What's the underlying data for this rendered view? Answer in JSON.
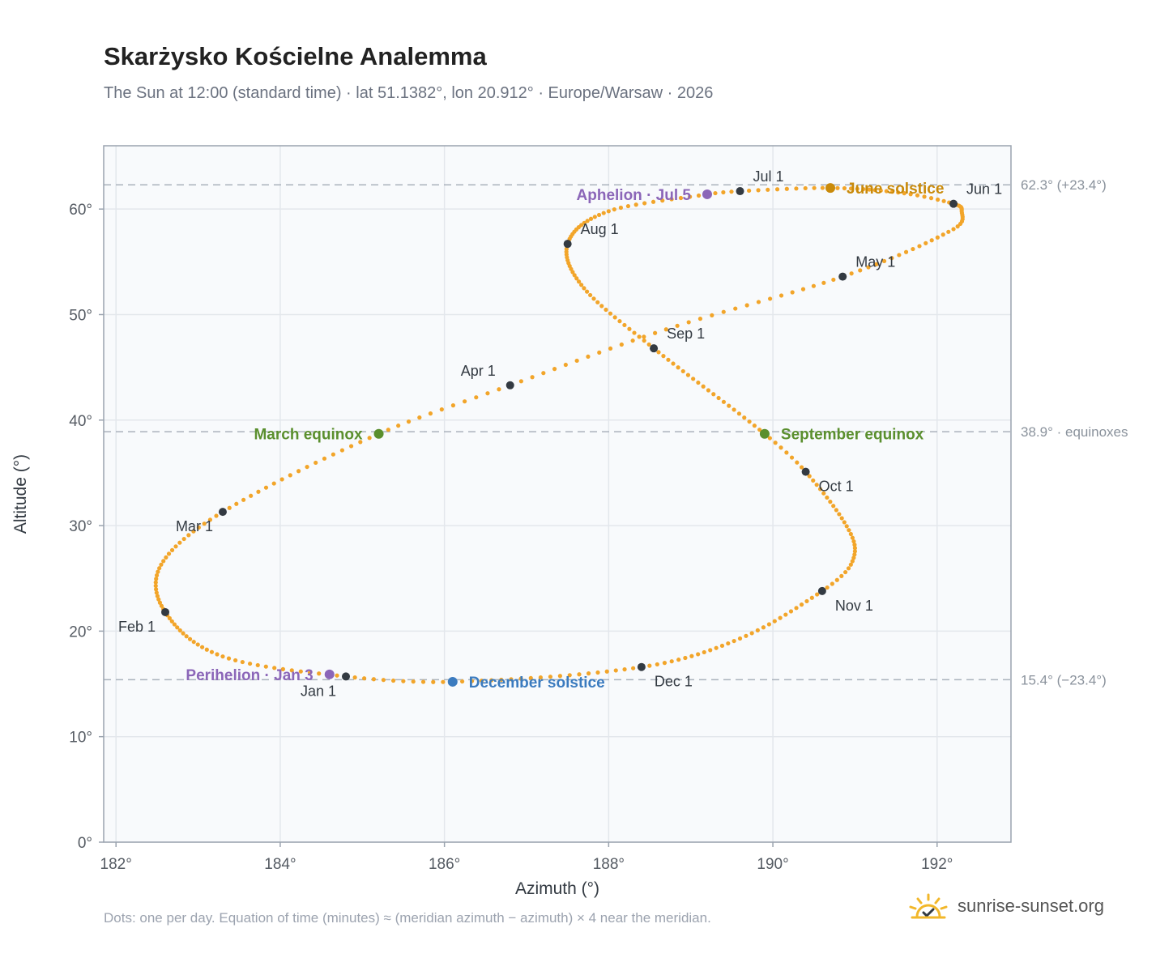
{
  "title": "Skarżysko Kościelne Analemma",
  "subtitle": "The Sun at 12:00 (standard time) · lat 51.1382°, lon 20.912° · Europe/Warsaw · 2026",
  "footnote": "Dots: one per day. Equation of time (minutes) ≈ (meridian azimuth − azimuth) × 4 near the meridian.",
  "brand": {
    "name": "sunrise-sunset.org",
    "icon": "sun-logo-icon"
  },
  "colors": {
    "curve": "#f2a52a",
    "month_marker": "#333a42",
    "solstice_june": "#c98a0a",
    "solstice_december": "#3b7bbf",
    "equinox": "#5a8f2e",
    "apsis": "#8b66b8",
    "plot_bg": "#f8fafc",
    "grid": "#e3e7ec",
    "frame": "#9aa3af",
    "ref_line": "#aab2bc"
  },
  "chart_data": {
    "type": "scatter",
    "xlabel": "Azimuth (°)",
    "ylabel": "Altitude (°)",
    "xlim": [
      181.85,
      192.9
    ],
    "ylim": [
      0,
      66
    ],
    "xticks": [
      182,
      184,
      186,
      188,
      190,
      192
    ],
    "xtick_labels": [
      "182°",
      "184°",
      "186°",
      "188°",
      "190°",
      "192°"
    ],
    "yticks": [
      0,
      10,
      20,
      30,
      40,
      50,
      60
    ],
    "ytick_labels": [
      "0°",
      "10°",
      "20°",
      "30°",
      "40°",
      "50°",
      "60°"
    ],
    "grid": true,
    "reference_lines": [
      {
        "y": 62.3,
        "label": "62.3° (+23.4°)"
      },
      {
        "y": 38.9,
        "label": "38.9° · equinoxes"
      },
      {
        "y": 15.4,
        "label": "15.4° (−23.4°)"
      }
    ],
    "daily_path": {
      "points_per_day": 1,
      "anchors": [
        {
          "day": 1,
          "az": 184.8,
          "alt": 15.7
        },
        {
          "day": 16,
          "az": 183.3,
          "alt": 17.6
        },
        {
          "day": 32,
          "az": 182.6,
          "alt": 21.8
        },
        {
          "day": 46,
          "az": 182.55,
          "alt": 26.3
        },
        {
          "day": 60,
          "az": 183.3,
          "alt": 31.3
        },
        {
          "day": 79,
          "az": 185.2,
          "alt": 38.7
        },
        {
          "day": 91,
          "az": 186.8,
          "alt": 43.3
        },
        {
          "day": 105,
          "az": 188.7,
          "alt": 48.6
        },
        {
          "day": 121,
          "az": 190.85,
          "alt": 53.6
        },
        {
          "day": 137,
          "az": 192.2,
          "alt": 58.1
        },
        {
          "day": 145,
          "az": 192.3,
          "alt": 59.8
        },
        {
          "day": 152,
          "az": 192.2,
          "alt": 60.5
        },
        {
          "day": 160,
          "az": 191.6,
          "alt": 61.5
        },
        {
          "day": 172,
          "az": 190.7,
          "alt": 62.0
        },
        {
          "day": 182,
          "az": 189.6,
          "alt": 61.7
        },
        {
          "day": 186,
          "az": 189.2,
          "alt": 61.4
        },
        {
          "day": 198,
          "az": 188.0,
          "alt": 59.8
        },
        {
          "day": 213,
          "az": 187.5,
          "alt": 56.7
        },
        {
          "day": 228,
          "az": 187.7,
          "alt": 52.5
        },
        {
          "day": 244,
          "az": 188.55,
          "alt": 46.8
        },
        {
          "day": 266,
          "az": 189.9,
          "alt": 38.7
        },
        {
          "day": 274,
          "az": 190.4,
          "alt": 35.1
        },
        {
          "day": 289,
          "az": 190.95,
          "alt": 29.2
        },
        {
          "day": 298,
          "az": 190.95,
          "alt": 26.3
        },
        {
          "day": 305,
          "az": 190.6,
          "alt": 23.8
        },
        {
          "day": 320,
          "az": 189.6,
          "alt": 19.3
        },
        {
          "day": 335,
          "az": 188.4,
          "alt": 16.6
        },
        {
          "day": 355,
          "az": 186.1,
          "alt": 15.2
        },
        {
          "day": 366,
          "az": 184.8,
          "alt": 15.7
        }
      ]
    },
    "month_markers": [
      {
        "label": "Jan 1",
        "az": 184.8,
        "alt": 15.7,
        "anchor": "below-left"
      },
      {
        "label": "Feb 1",
        "az": 182.6,
        "alt": 21.8,
        "anchor": "below-left"
      },
      {
        "label": "Mar 1",
        "az": 183.3,
        "alt": 31.3,
        "anchor": "below-left"
      },
      {
        "label": "Apr 1",
        "az": 186.8,
        "alt": 43.3,
        "anchor": "above-left"
      },
      {
        "label": "May 1",
        "az": 190.85,
        "alt": 53.6,
        "anchor": "above-right"
      },
      {
        "label": "Jun 1",
        "az": 192.2,
        "alt": 60.5,
        "anchor": "above-right"
      },
      {
        "label": "Jul 1",
        "az": 189.6,
        "alt": 61.7,
        "anchor": "above-right"
      },
      {
        "label": "Aug 1",
        "az": 187.5,
        "alt": 56.7,
        "anchor": "above-right"
      },
      {
        "label": "Sep 1",
        "az": 188.55,
        "alt": 46.8,
        "anchor": "above-right"
      },
      {
        "label": "Oct 1",
        "az": 190.4,
        "alt": 35.1,
        "anchor": "below-right"
      },
      {
        "label": "Nov 1",
        "az": 190.6,
        "alt": 23.8,
        "anchor": "below-right"
      },
      {
        "label": "Dec 1",
        "az": 188.4,
        "alt": 16.6,
        "anchor": "below-right"
      }
    ],
    "events": [
      {
        "label": "June solstice",
        "az": 190.7,
        "alt": 62.0,
        "kind": "solstice_june",
        "anchor": "right"
      },
      {
        "label": "December solstice",
        "az": 186.1,
        "alt": 15.2,
        "kind": "solstice_december",
        "anchor": "right"
      },
      {
        "label": "March equinox",
        "az": 185.2,
        "alt": 38.7,
        "kind": "equinox",
        "anchor": "left"
      },
      {
        "label": "September equinox",
        "az": 189.9,
        "alt": 38.7,
        "kind": "equinox",
        "anchor": "right"
      },
      {
        "label": "Aphelion · Jul 5",
        "az": 189.2,
        "alt": 61.4,
        "kind": "apsis",
        "anchor": "left"
      },
      {
        "label": "Perihelion · Jan 3",
        "az": 184.6,
        "alt": 15.9,
        "kind": "apsis",
        "anchor": "left"
      }
    ]
  }
}
